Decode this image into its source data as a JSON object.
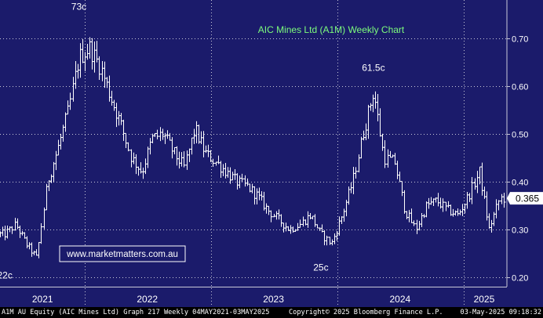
{
  "chart_data": {
    "type": "line",
    "style": "ohlc-bars",
    "title": "AIC Mines Ltd (A1M) Weekly Chart",
    "watermark": "www.marketmatters.com.au",
    "ylim": [
      0.18,
      0.78
    ],
    "yticks": [
      0.2,
      0.3,
      0.4,
      0.5,
      0.6,
      0.7
    ],
    "ytick_labels": [
      "0.20",
      "0.30",
      "0.40",
      "0.50",
      "0.60",
      "0.70"
    ],
    "x_years": [
      "2021",
      "2022",
      "2023",
      "2024",
      "2025"
    ],
    "grid": true,
    "current_price_label": "0.365",
    "current_price": 0.365,
    "annotations": [
      {
        "label": "73c",
        "date": "2021-12",
        "value": 0.73
      },
      {
        "label": "22c",
        "date": "2021-05",
        "value": 0.22
      },
      {
        "label": "61.5c",
        "date": "2024-04",
        "value": 0.615
      },
      {
        "label": "25c",
        "date": "2023-11",
        "value": 0.25
      }
    ],
    "series": [
      {
        "color": "#ffffff",
        "x": [
          "2021-05",
          "2021-06",
          "2021-07",
          "2021-08",
          "2021-09",
          "2021-10",
          "2021-11",
          "2021-12",
          "2022-01",
          "2022-02",
          "2022-03",
          "2022-04",
          "2022-05",
          "2022-06",
          "2022-07",
          "2022-08",
          "2022-09",
          "2022-10",
          "2022-11",
          "2022-12",
          "2023-01",
          "2023-02",
          "2023-03",
          "2023-04",
          "2023-05",
          "2023-06",
          "2023-07",
          "2023-08",
          "2023-09",
          "2023-10",
          "2023-11",
          "2023-12",
          "2024-01",
          "2024-02",
          "2024-03",
          "2024-04",
          "2024-05",
          "2024-06",
          "2024-07",
          "2024-08",
          "2024-09",
          "2024-10",
          "2024-11",
          "2024-12",
          "2025-01",
          "2025-02",
          "2025-03",
          "2025-04"
        ],
        "values": [
          0.29,
          0.31,
          0.27,
          0.24,
          0.4,
          0.47,
          0.55,
          0.66,
          0.68,
          0.64,
          0.58,
          0.52,
          0.45,
          0.42,
          0.49,
          0.5,
          0.46,
          0.43,
          0.51,
          0.46,
          0.44,
          0.42,
          0.4,
          0.39,
          0.37,
          0.34,
          0.32,
          0.3,
          0.31,
          0.33,
          0.29,
          0.27,
          0.33,
          0.4,
          0.5,
          0.59,
          0.45,
          0.44,
          0.34,
          0.3,
          0.35,
          0.36,
          0.34,
          0.33,
          0.37,
          0.42,
          0.3,
          0.365
        ]
      }
    ]
  },
  "footer": {
    "left": "A1M AU Equity (AIC Mines Ltd) Graph 217  Weekly 04MAY2021-03MAY2025",
    "center": "Copyright© 2025 Bloomberg Finance L.P.",
    "right": "03-May-2025 09:18:32"
  }
}
